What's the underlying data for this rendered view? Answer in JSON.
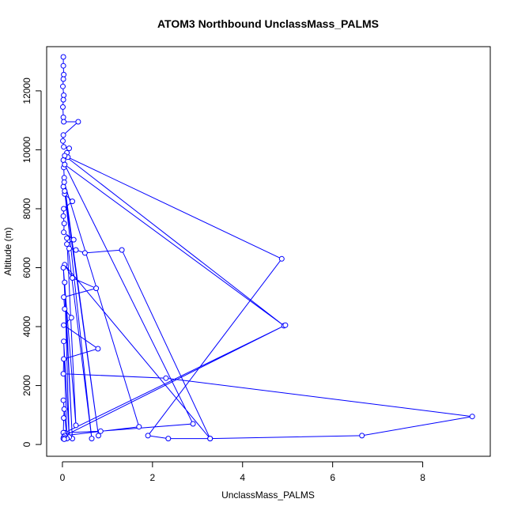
{
  "chart_data": {
    "type": "line",
    "title": "ATOM3 Northbound UnclassMass_PALMS",
    "xlabel": "UnclassMass_PALMS",
    "ylabel": "Altitude (m)",
    "xlim": [
      -0.35,
      9.5
    ],
    "ylim": [
      -400,
      13500
    ],
    "xticks": [
      0,
      2,
      4,
      6,
      8
    ],
    "yticks": [
      0,
      2000,
      4000,
      6000,
      8000,
      10000,
      12000
    ],
    "grid": false,
    "legend": "none",
    "series": [
      {
        "color": "#0000ff",
        "marker": "open-circle",
        "points": [
          [
            0.02,
            13150
          ],
          [
            0.02,
            12850
          ],
          [
            0.03,
            12550
          ],
          [
            0.02,
            12400
          ],
          [
            0.01,
            12150
          ],
          [
            0.03,
            11850
          ],
          [
            0.02,
            11700
          ],
          [
            0.01,
            11450
          ],
          [
            0.02,
            11100
          ],
          [
            0.03,
            10950
          ],
          [
            0.35,
            10950
          ],
          [
            0.02,
            10500
          ],
          [
            0.01,
            10300
          ],
          [
            0.03,
            10100
          ],
          [
            0.15,
            10050
          ],
          [
            0.1,
            9900
          ],
          [
            0.12,
            9750
          ],
          [
            0.02,
            9650
          ],
          [
            0.03,
            9400
          ],
          [
            0.04,
            9050
          ],
          [
            0.02,
            8750
          ],
          [
            0.05,
            8500
          ],
          [
            0.22,
            8250
          ],
          [
            0.03,
            8000
          ],
          [
            0.02,
            7750
          ],
          [
            0.04,
            7500
          ],
          [
            0.03,
            7200
          ],
          [
            0.25,
            6950
          ],
          [
            0.1,
            6800
          ],
          [
            0.15,
            6650
          ],
          [
            0.3,
            6600
          ],
          [
            0.5,
            6500
          ],
          [
            1.32,
            6600
          ],
          [
            3.28,
            200
          ],
          [
            0.05,
            6100
          ],
          [
            0.22,
            5650
          ],
          [
            0.75,
            5300
          ],
          [
            0.03,
            5000
          ],
          [
            0.05,
            4600
          ],
          [
            0.2,
            4300
          ],
          [
            0.03,
            4050
          ],
          [
            0.79,
            3250
          ],
          [
            0.03,
            2900
          ],
          [
            0.02,
            2400
          ],
          [
            2.3,
            2250
          ],
          [
            9.1,
            950
          ],
          [
            6.65,
            300
          ],
          [
            3.28,
            200
          ],
          [
            2.35,
            200
          ],
          [
            1.9,
            300
          ],
          [
            4.87,
            6300
          ],
          [
            0.05,
            9800
          ],
          [
            4.92,
            4030
          ],
          [
            0.05,
            9500
          ],
          [
            2.9,
            700
          ],
          [
            0.85,
            450
          ],
          [
            0.05,
            400
          ],
          [
            4.95,
            4050
          ],
          [
            0.05,
            300
          ],
          [
            1.7,
            600
          ],
          [
            0.04,
            8900
          ],
          [
            0.8,
            300
          ],
          [
            0.05,
            8600
          ],
          [
            0.65,
            200
          ],
          [
            0.1,
            7000
          ],
          [
            0.3,
            650
          ],
          [
            0.02,
            6000
          ],
          [
            0.22,
            200
          ],
          [
            0.05,
            5500
          ],
          [
            0.15,
            250
          ],
          [
            0.03,
            3500
          ],
          [
            0.1,
            200
          ],
          [
            0.02,
            1500
          ],
          [
            0.04,
            1200
          ],
          [
            0.03,
            900
          ],
          [
            0.02,
            400
          ],
          [
            0.05,
            300
          ],
          [
            0.03,
            250
          ],
          [
            0.02,
            200
          ],
          [
            0.04,
            180
          ]
        ]
      }
    ]
  }
}
